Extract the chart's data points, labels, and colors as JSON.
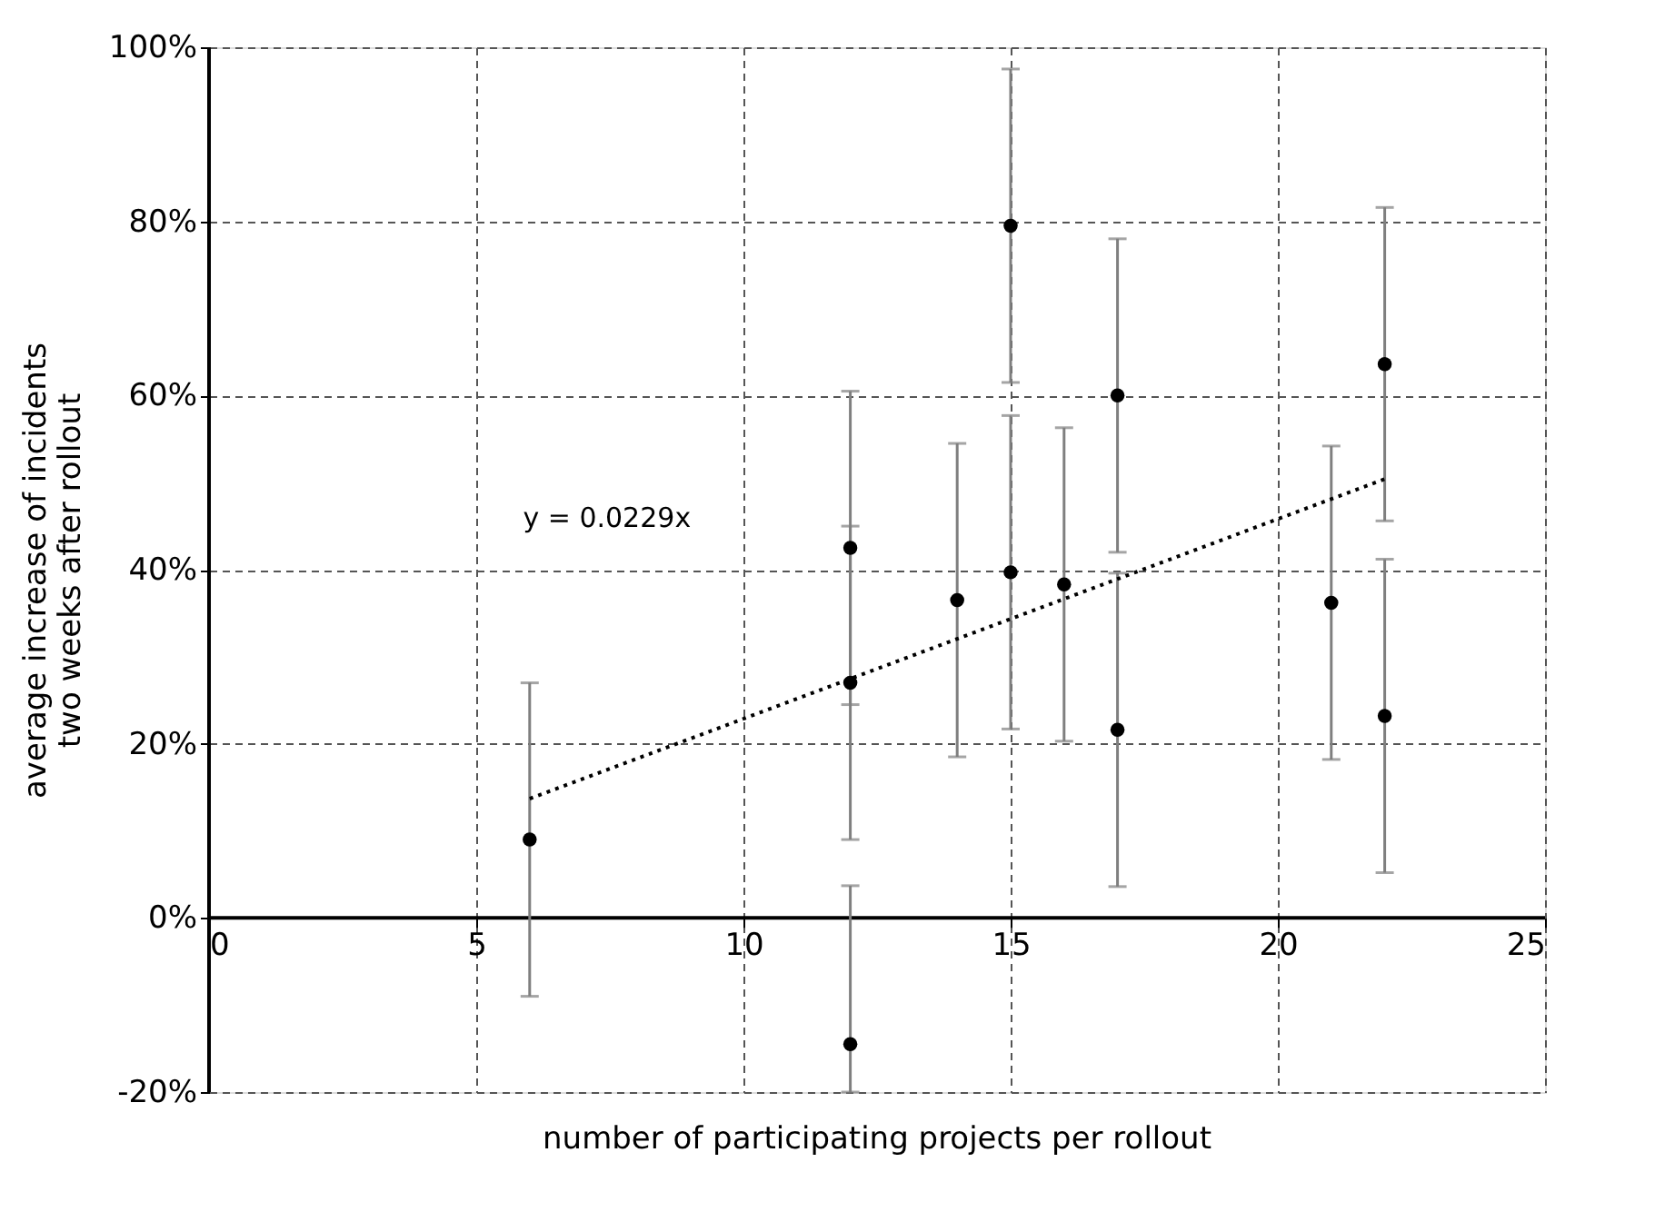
{
  "chart_data": {
    "type": "scatter",
    "xlabel": "number of participating projects per rollout",
    "ylabel": "average increase of incidents\ntwo weeks after rollout",
    "xlim": [
      0,
      25
    ],
    "xticks": [
      0,
      5,
      10,
      15,
      20,
      25
    ],
    "ylim": [
      -20,
      100
    ],
    "yticks": [
      {
        "value": -20,
        "label": "-20%"
      },
      {
        "value": 0,
        "label": "0%"
      },
      {
        "value": 20,
        "label": "20%"
      },
      {
        "value": 40,
        "label": "40%"
      },
      {
        "value": 60,
        "label": "60%"
      },
      {
        "value": 80,
        "label": "80%"
      },
      {
        "value": 100,
        "label": "100%"
      }
    ],
    "grid": true,
    "marker": "circle",
    "series": [
      {
        "color": "#000000",
        "x": [
          6,
          12,
          12,
          12,
          14,
          15,
          15,
          16,
          17,
          17,
          21,
          22,
          22
        ],
        "values": [
          9,
          42.5,
          27,
          -14.5,
          36.5,
          79.5,
          39.7,
          38.3,
          60,
          21.6,
          36.2,
          63.6,
          23.2
        ],
        "errors": [
          [
            -9,
            27
          ],
          [
            24.5,
            60.5
          ],
          [
            9,
            45
          ],
          [
            -20,
            3.7
          ],
          [
            18.5,
            54.5
          ],
          [
            61.5,
            97.5
          ],
          [
            21.7,
            57.7
          ],
          [
            20.3,
            56.3
          ],
          [
            42,
            78
          ],
          [
            3.6,
            39.6
          ],
          [
            18.2,
            54.2
          ],
          [
            45.6,
            81.6
          ],
          [
            5.2,
            41.2
          ]
        ]
      },
      {
        "type": "line",
        "color": "#000000",
        "line_style": "dotted",
        "marker": "none",
        "x": [
          6,
          22
        ],
        "values": [
          13.7,
          50.4
        ]
      }
    ],
    "annotations": [
      "y = 0.0229x"
    ]
  }
}
